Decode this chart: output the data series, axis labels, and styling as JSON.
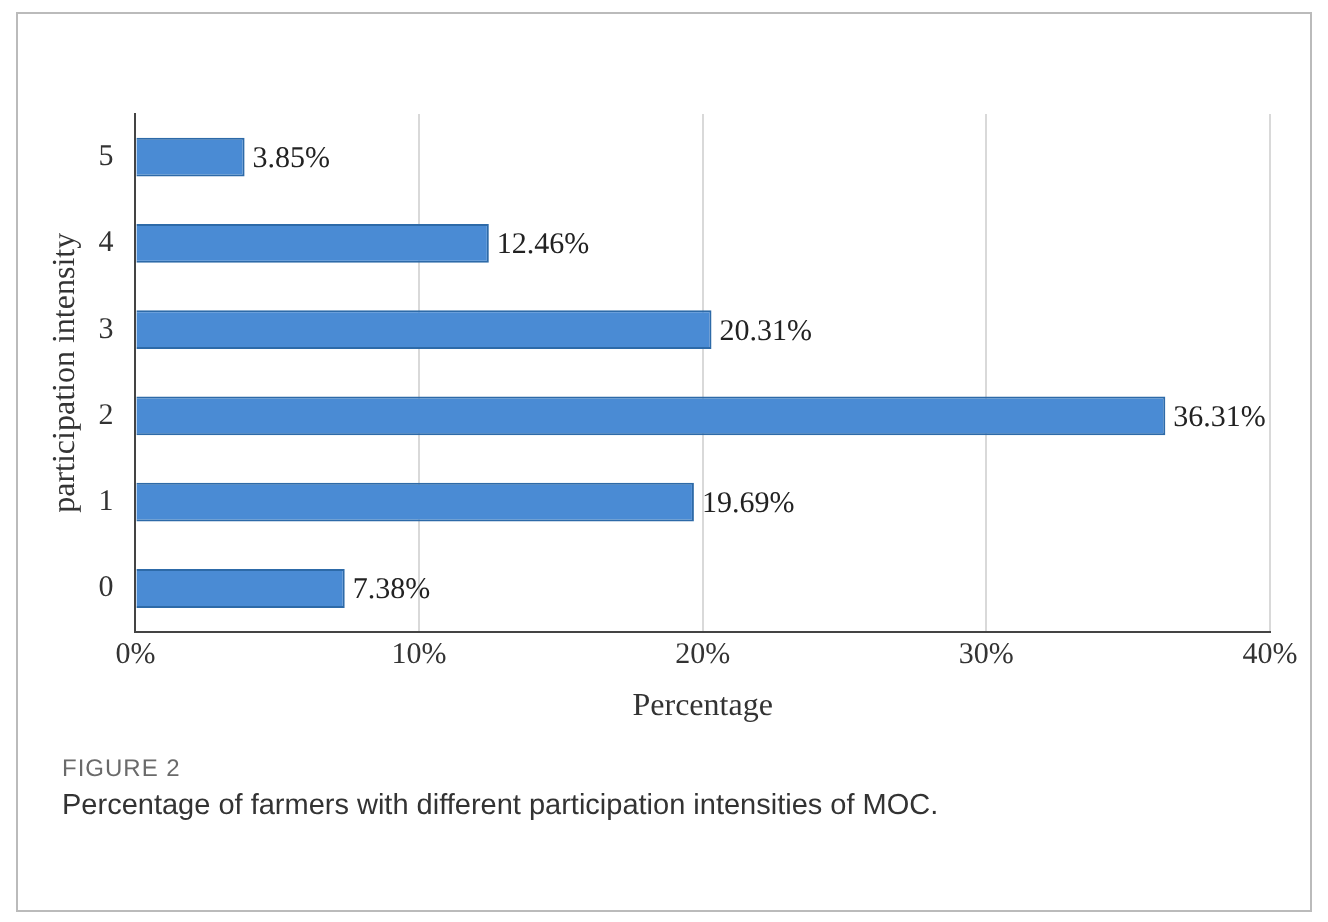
{
  "chart_data": {
    "type": "bar",
    "orientation": "horizontal",
    "categories": [
      "5",
      "4",
      "3",
      "2",
      "1",
      "0"
    ],
    "values": [
      3.85,
      12.46,
      20.31,
      36.31,
      19.69,
      7.38
    ],
    "value_labels": [
      "3.85%",
      "12.46%",
      "20.31%",
      "36.31%",
      "19.69%",
      "7.38%"
    ],
    "color": "#4a8bd4",
    "xlim": [
      0,
      40
    ],
    "xticks": [
      {
        "value": 0,
        "label": "0%"
      },
      {
        "value": 10,
        "label": "10%"
      },
      {
        "value": 20,
        "label": "20%"
      },
      {
        "value": 30,
        "label": "30%"
      },
      {
        "value": 40,
        "label": "40%"
      }
    ],
    "xlabel": "Percentage",
    "ylabel": "participation intensity",
    "grid": "x",
    "legend": false,
    "annotations": [
      "FIGURE 2",
      "Percentage of farmers with different participation intensities of MOC."
    ]
  }
}
